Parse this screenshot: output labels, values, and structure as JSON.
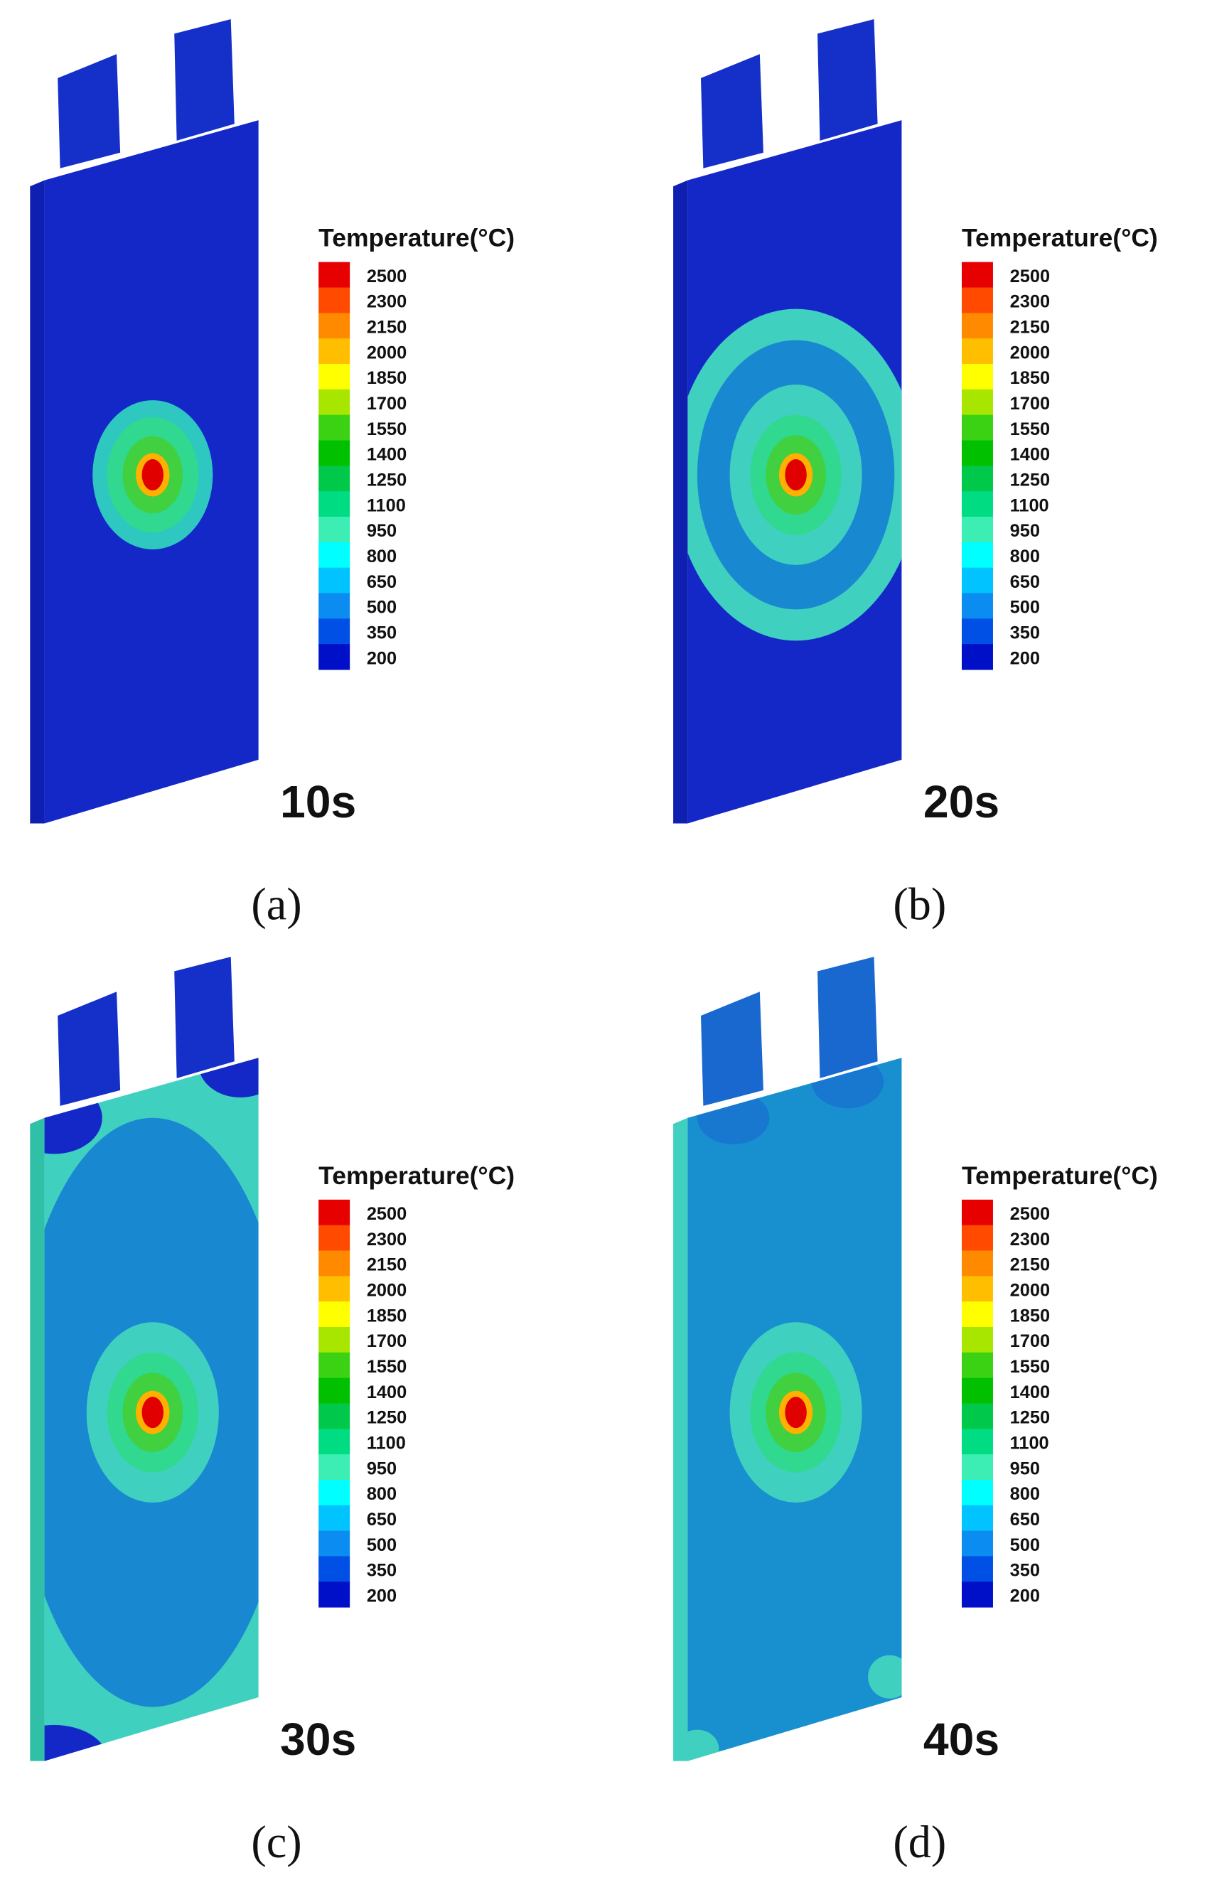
{
  "legend": {
    "title": "Temperature(°C)",
    "levels": [
      2500,
      2300,
      2150,
      2000,
      1850,
      1700,
      1550,
      1400,
      1250,
      1100,
      950,
      800,
      650,
      500,
      350,
      200
    ],
    "colors": [
      "#e60000",
      "#ff4a00",
      "#ff8a00",
      "#ffbf00",
      "#ffff00",
      "#a8e600",
      "#3cd214",
      "#00c000",
      "#00c84a",
      "#00dc82",
      "#3ceeb4",
      "#00ffff",
      "#00c3ff",
      "#0a8cf0",
      "#0050e6",
      "#0010c8"
    ]
  },
  "panels": [
    {
      "time": "10s",
      "caption": "(a)"
    },
    {
      "time": "20s",
      "caption": "(b)"
    },
    {
      "time": "30s",
      "caption": "(c)"
    },
    {
      "time": "40s",
      "caption": "(d)"
    }
  ]
}
